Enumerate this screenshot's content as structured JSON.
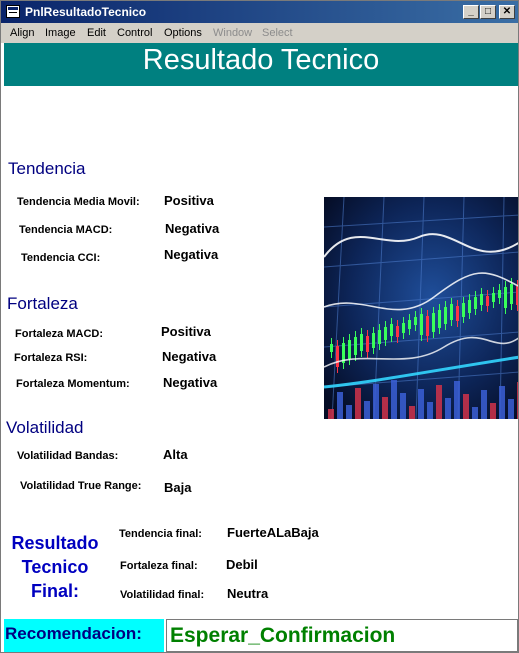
{
  "window": {
    "title": "PnlResultadoTecnico"
  },
  "menu": [
    "Align",
    "Image",
    "Edit",
    "Control",
    "Options",
    "Window",
    "Select"
  ],
  "header": {
    "title": "Resultado Tecnico"
  },
  "tendencia": {
    "heading": "Tendencia",
    "rows": [
      {
        "label": "Tendencia Media Movil:",
        "value": "Positiva"
      },
      {
        "label": "Tendencia MACD:",
        "value": "Negativa"
      },
      {
        "label": "Tendencia CCI:",
        "value": "Negativa"
      }
    ]
  },
  "fortaleza": {
    "heading": "Fortaleza",
    "rows": [
      {
        "label": "Fortaleza MACD:",
        "value": "Positiva"
      },
      {
        "label": "Fortaleza RSI:",
        "value": "Negativa"
      },
      {
        "label": "Fortaleza Momentum:",
        "value": "Negativa"
      }
    ]
  },
  "volatilidad": {
    "heading": "Volatilidad",
    "rows": [
      {
        "label": "Volatilidad Bandas:",
        "value": "Alta"
      },
      {
        "label": "Volatilidad True Range:",
        "value": "Baja"
      }
    ]
  },
  "final": {
    "heading_lines": [
      "Resultado",
      "Tecnico",
      "Final:"
    ],
    "rows": [
      {
        "label": "Tendencia final:",
        "value": "FuerteALaBaja"
      },
      {
        "label": "Fortaleza final:",
        "value": "Debil"
      },
      {
        "label": "Volatilidad final:",
        "value": "Neutra"
      }
    ]
  },
  "recomendacion": {
    "label": "Recomendacion:",
    "value": "Esperar_Confirmacion"
  },
  "colors": {
    "banner": "#008080",
    "section": "#000080",
    "final": "#0000c0",
    "reco_label_bg": "#00ffff",
    "reco_value": "#008000"
  }
}
